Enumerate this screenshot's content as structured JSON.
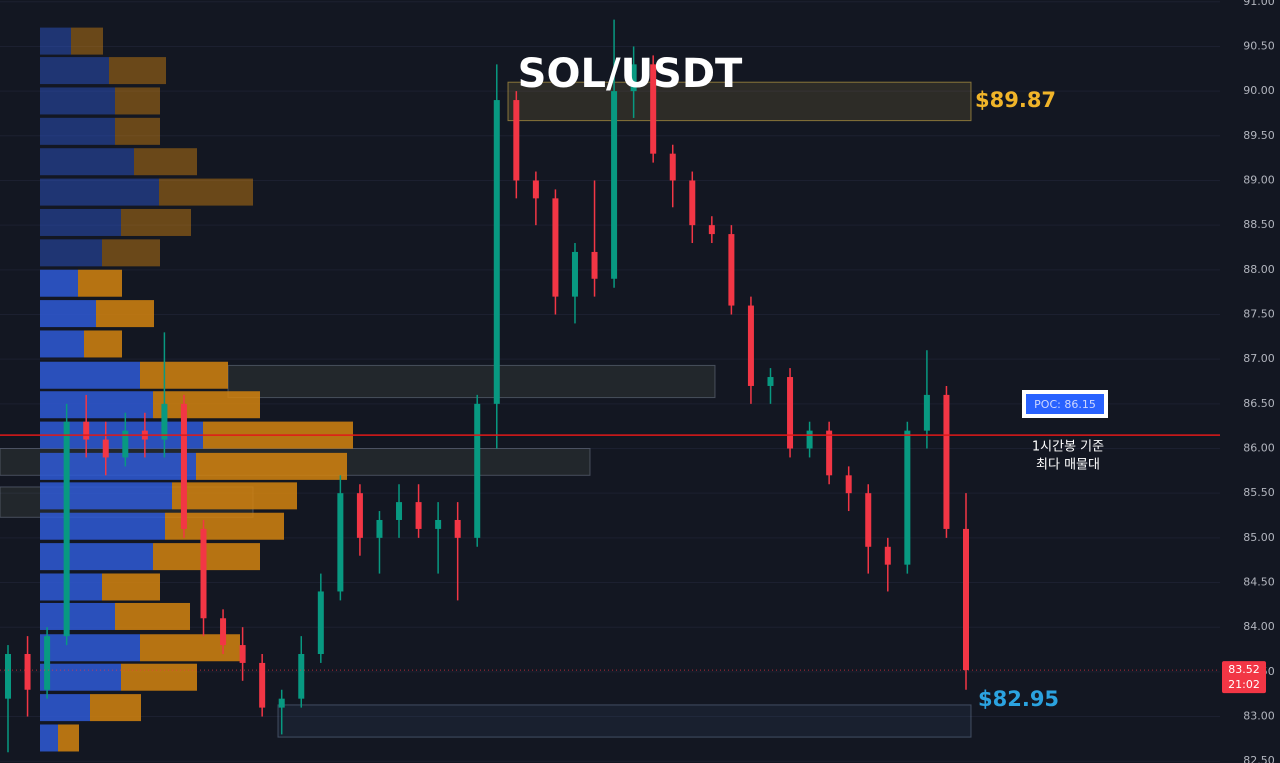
{
  "chart_data": {
    "type": "candlestick",
    "title": "SOL/USDT",
    "ylim": [
      82.48,
      91.02
    ],
    "yticks": [
      {
        "value": 82.5,
        "label": "82.50"
      },
      {
        "value": 83,
        "label": "83.00"
      },
      {
        "value": 83.5,
        "label": "83.50"
      },
      {
        "value": 84,
        "label": "84.00"
      },
      {
        "value": 84.5,
        "label": "84.50"
      },
      {
        "value": 85,
        "label": "85.00"
      },
      {
        "value": 85.5,
        "label": "85.50"
      },
      {
        "value": 86,
        "label": "86.00"
      },
      {
        "value": 86.5,
        "label": "86.50"
      },
      {
        "value": 87,
        "label": "87.00"
      },
      {
        "value": 87.5,
        "label": "87.50"
      },
      {
        "value": 88,
        "label": "88.00"
      },
      {
        "value": 88.5,
        "label": "88.50"
      },
      {
        "value": 89,
        "label": "89.00"
      },
      {
        "value": 89.5,
        "label": "89.50"
      },
      {
        "value": 90,
        "label": "90.00"
      },
      {
        "value": 90.5,
        "label": "90.50"
      },
      {
        "value": 91,
        "label": "91.00"
      }
    ],
    "up_color": "#089981",
    "down_color": "#f23645",
    "open": [
      83.2,
      83.7,
      83.3,
      83.9,
      86.3,
      86.1,
      85.9,
      86.2,
      86.1,
      86.5,
      85.1,
      84.1,
      83.8,
      83.6,
      83.1,
      83.2,
      83.7,
      84.4,
      85.5,
      85.0,
      85.2,
      85.4,
      85.1,
      85.2,
      85.0,
      86.5,
      89.9,
      89.0,
      88.8,
      87.7,
      88.2,
      87.9,
      90.0,
      90.3,
      89.3,
      89.0,
      88.5,
      88.4,
      87.6,
      86.7,
      86.8,
      86.0,
      86.2,
      85.7,
      85.5,
      84.9,
      84.7,
      86.2,
      86.6,
      85.1
    ],
    "high": [
      83.8,
      83.9,
      84.0,
      86.5,
      86.6,
      86.3,
      86.4,
      86.4,
      87.3,
      86.6,
      85.2,
      84.2,
      84.0,
      83.7,
      83.3,
      83.9,
      84.6,
      85.7,
      85.6,
      85.3,
      85.6,
      85.6,
      85.4,
      85.4,
      86.6,
      90.3,
      90.0,
      89.1,
      88.9,
      88.3,
      89.0,
      90.8,
      90.5,
      90.4,
      89.4,
      89.1,
      88.6,
      88.5,
      87.7,
      86.9,
      86.9,
      86.3,
      86.3,
      85.8,
      85.6,
      85.0,
      86.3,
      87.1,
      86.7,
      85.5
    ],
    "low": [
      82.6,
      83.0,
      83.2,
      83.8,
      85.9,
      85.7,
      85.8,
      85.9,
      85.9,
      85.0,
      83.9,
      83.7,
      83.4,
      83.0,
      82.8,
      83.1,
      83.6,
      84.3,
      84.8,
      84.6,
      85.0,
      85.0,
      84.6,
      84.3,
      84.9,
      86.0,
      88.8,
      88.5,
      87.5,
      87.4,
      87.7,
      87.8,
      89.7,
      89.2,
      88.7,
      88.3,
      88.3,
      87.5,
      86.5,
      86.5,
      85.9,
      85.9,
      85.6,
      85.3,
      84.6,
      84.4,
      84.6,
      86.0,
      85.0,
      83.3
    ],
    "close": [
      83.7,
      83.3,
      83.9,
      86.3,
      86.1,
      85.9,
      86.2,
      86.1,
      86.5,
      85.1,
      84.1,
      83.8,
      83.6,
      83.1,
      83.2,
      83.7,
      84.4,
      85.5,
      85.0,
      85.2,
      85.4,
      85.1,
      85.2,
      85.0,
      86.5,
      89.9,
      89.0,
      88.8,
      87.7,
      88.2,
      87.9,
      90.0,
      90.3,
      89.3,
      89.0,
      88.5,
      88.4,
      87.6,
      86.7,
      86.8,
      86.0,
      86.2,
      85.7,
      85.5,
      84.9,
      84.7,
      86.2,
      86.6,
      85.1,
      83.52
    ],
    "profile": {
      "buy_color": "#2f5bd6",
      "sell_color": "#d4840f",
      "levels": [
        90.56,
        90.23,
        89.89,
        89.55,
        89.21,
        88.87,
        88.53,
        88.19,
        87.85,
        87.51,
        87.17,
        86.82,
        86.49,
        86.15,
        85.8,
        85.47,
        85.13,
        84.79,
        84.45,
        84.12,
        83.77,
        83.44,
        83.1,
        82.76
      ],
      "buy": [
        31,
        69,
        75,
        75,
        94,
        119,
        81,
        62,
        38,
        56,
        44,
        100,
        113,
        163,
        156,
        132,
        125,
        113,
        62,
        75,
        100,
        81,
        50,
        18
      ],
      "sell": [
        32,
        57,
        45,
        45,
        63,
        94,
        70,
        58,
        44,
        58,
        38,
        88,
        107,
        150,
        151,
        125,
        119,
        107,
        58,
        75,
        100,
        76,
        51,
        21
      ]
    },
    "zones": [
      {
        "low": 89.67,
        "high": 90.1
      },
      {
        "low": 86.57,
        "high": 86.93
      },
      {
        "low": 85.7,
        "high": 86.0
      },
      {
        "low": 85.23,
        "high": 85.57
      },
      {
        "low": 82.77,
        "high": 83.13
      }
    ],
    "poc": {
      "value": 86.15,
      "label": "POC: 86.15",
      "note": [
        "1시간봉 기준",
        "최다 매물대"
      ]
    },
    "resistance_label": "$89.87",
    "support_label": "$82.95",
    "last_price": {
      "value": 83.52,
      "label": "83.52",
      "time": "21:02"
    }
  }
}
